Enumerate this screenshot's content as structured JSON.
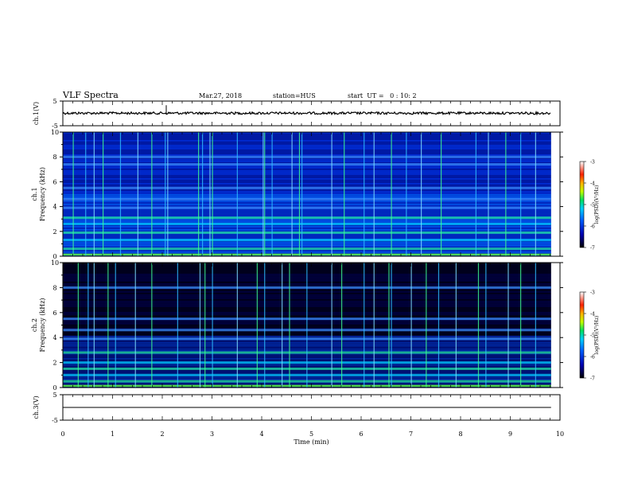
{
  "header": {
    "title": "VLF Spectra",
    "date": "Mar.27, 2018",
    "station": "station=HUS",
    "start_ut": "start  UT =   0 : 10: 2"
  },
  "chart_data": [
    {
      "type": "line",
      "panel": "ch1-waveform",
      "ylabel": "ch.1(V)",
      "ylim": [
        -5,
        5
      ],
      "yticks": [
        "5",
        "-5"
      ],
      "xlim": [
        0,
        10
      ],
      "series": [
        {
          "x": [
            0,
            9.82
          ],
          "y": [
            0.1,
            0.1
          ]
        }
      ]
    },
    {
      "type": "heatmap",
      "panel": "ch1-spectrogram",
      "ylabel_lines": [
        "ch.1",
        "Frequency (kHz)"
      ],
      "ylim": [
        0,
        10
      ],
      "yticks": [
        "0",
        "2",
        "4",
        "6",
        "8",
        "10"
      ],
      "xlim": [
        0,
        9.82
      ],
      "colorbar": {
        "label": "log(PSD)(V²/Hz)",
        "range": [
          -7,
          -3
        ],
        "ticks": [
          "-3",
          "-4",
          "-5",
          "-6",
          "-7"
        ]
      },
      "bright_bands_khz": [
        0.6,
        1.3,
        1.9,
        2.6,
        3.1,
        3.9,
        4.6,
        5.5,
        7.4,
        8.0
      ],
      "spike_times_min": [
        0.2,
        0.45,
        0.62,
        0.8,
        1.15,
        1.5,
        1.78,
        2.05,
        2.1,
        2.72,
        2.8,
        2.95,
        3.0,
        3.5,
        4.02,
        4.05,
        4.2,
        4.6,
        4.75,
        4.8,
        5.4,
        5.65,
        6.05,
        6.25,
        6.6,
        6.9,
        7.2,
        7.6,
        8.3,
        8.55,
        8.9,
        9.2,
        9.5
      ]
    },
    {
      "type": "heatmap",
      "panel": "ch2-spectrogram",
      "ylabel_lines": [
        "ch.2",
        "Frequency (kHz)"
      ],
      "ylim": [
        0,
        10
      ],
      "yticks": [
        "0",
        "2",
        "4",
        "6",
        "8",
        "10"
      ],
      "xlim": [
        0,
        9.82
      ],
      "colorbar": {
        "label": "log(PSD)(V²/Hz)",
        "range": [
          -7,
          -3
        ],
        "ticks": [
          "-3",
          "-4",
          "-5",
          "-6",
          "-7"
        ]
      },
      "bright_bands_khz": [
        0.5,
        1.0,
        1.5,
        2.0,
        2.8,
        3.9,
        4.6,
        5.5,
        8.0
      ],
      "spike_times_min": [
        0.3,
        0.5,
        0.62,
        0.9,
        1.05,
        1.45,
        1.78,
        2.3,
        2.75,
        2.85,
        3.0,
        3.5,
        3.9,
        4.05,
        4.4,
        4.55,
        4.9,
        5.4,
        5.6,
        6.05,
        6.25,
        6.55,
        6.6,
        7.0,
        7.3,
        7.55,
        7.9,
        8.35,
        8.5,
        8.95,
        9.2,
        9.5
      ]
    },
    {
      "type": "line",
      "panel": "ch3-waveform",
      "ylabel": "ch.3(V)",
      "ylim": [
        -5,
        5
      ],
      "yticks": [
        "5",
        "-5"
      ],
      "xlim": [
        0,
        10
      ],
      "xlabel": "Time (min)",
      "xticks": [
        "0",
        "1",
        "2",
        "3",
        "4",
        "5",
        "6",
        "7",
        "8",
        "9",
        "10"
      ],
      "series": [
        {
          "x": [
            0,
            9.82
          ],
          "y": [
            0,
            0
          ]
        }
      ]
    }
  ]
}
